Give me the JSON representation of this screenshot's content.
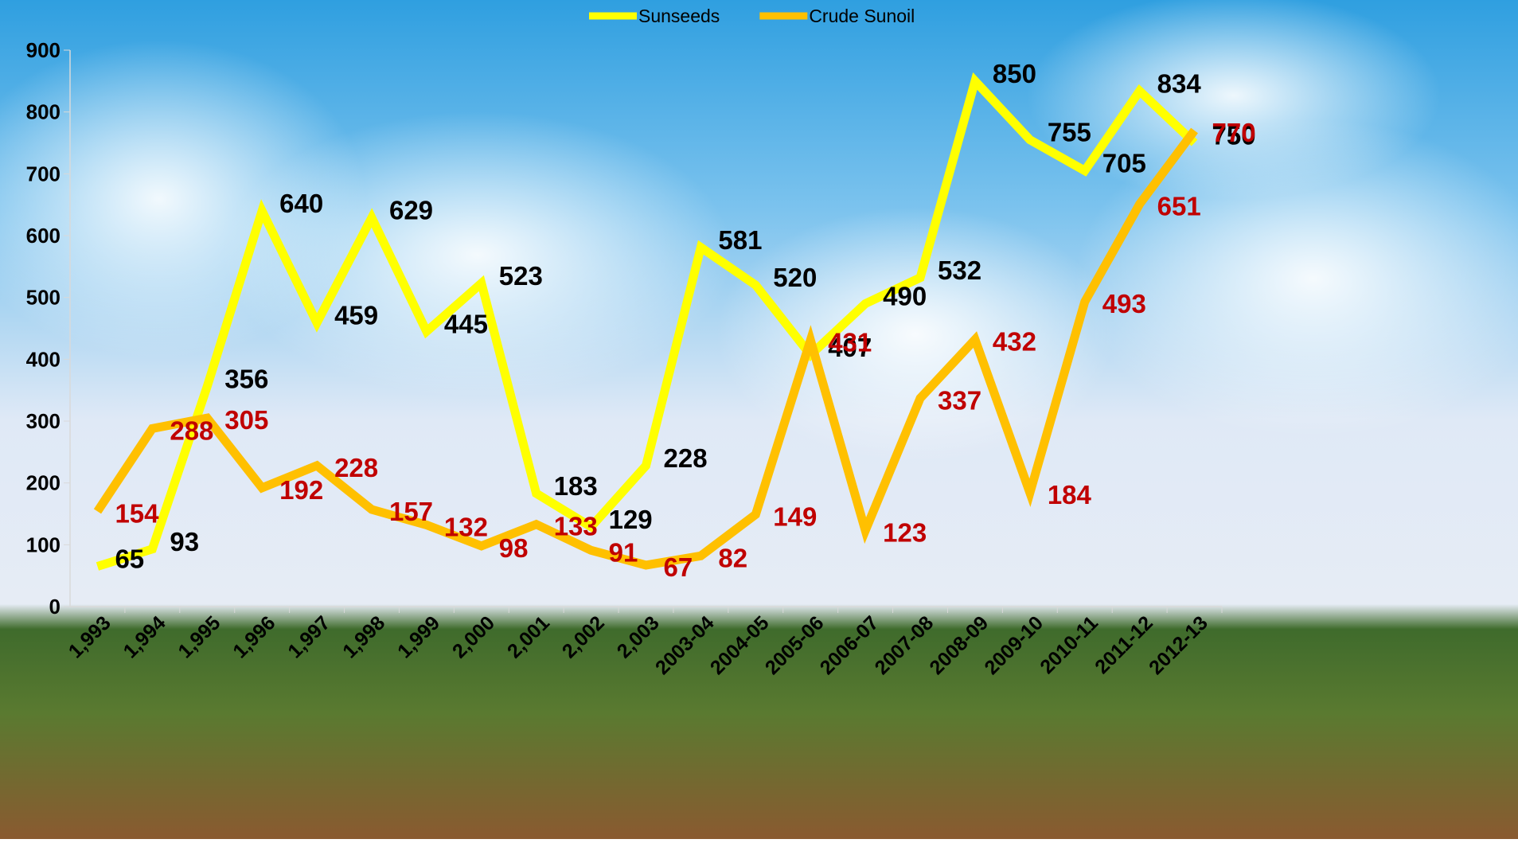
{
  "chart_data": {
    "type": "line",
    "categories": [
      "1,993",
      "1,994",
      "1,995",
      "1,996",
      "1,997",
      "1,998",
      "1,999",
      "2,000",
      "2,001",
      "2,002",
      "2,003",
      "2003-04",
      "2004-05",
      "2005-06",
      "2006-07",
      "2007-08",
      "2008-09",
      "2009-10",
      "2010-11",
      "2011-12",
      "2012-13"
    ],
    "series": [
      {
        "name": "Sunseeds",
        "color": "#ffff00",
        "label_color": "#000000",
        "values": [
          65,
          93,
          356,
          640,
          459,
          629,
          445,
          523,
          183,
          129,
          228,
          581,
          520,
          407,
          490,
          532,
          850,
          755,
          705,
          834,
          750
        ]
      },
      {
        "name": "Crude Sunoil",
        "color": "#ffc000",
        "label_color": "#c00000",
        "values": [
          154,
          288,
          305,
          192,
          228,
          157,
          132,
          98,
          133,
          91,
          67,
          82,
          149,
          431,
          123,
          337,
          432,
          184,
          493,
          651,
          770
        ]
      }
    ],
    "ylim": [
      0,
      900
    ],
    "yticks": [
      0,
      100,
      200,
      300,
      400,
      500,
      600,
      700,
      800,
      900
    ],
    "legend": "top"
  }
}
